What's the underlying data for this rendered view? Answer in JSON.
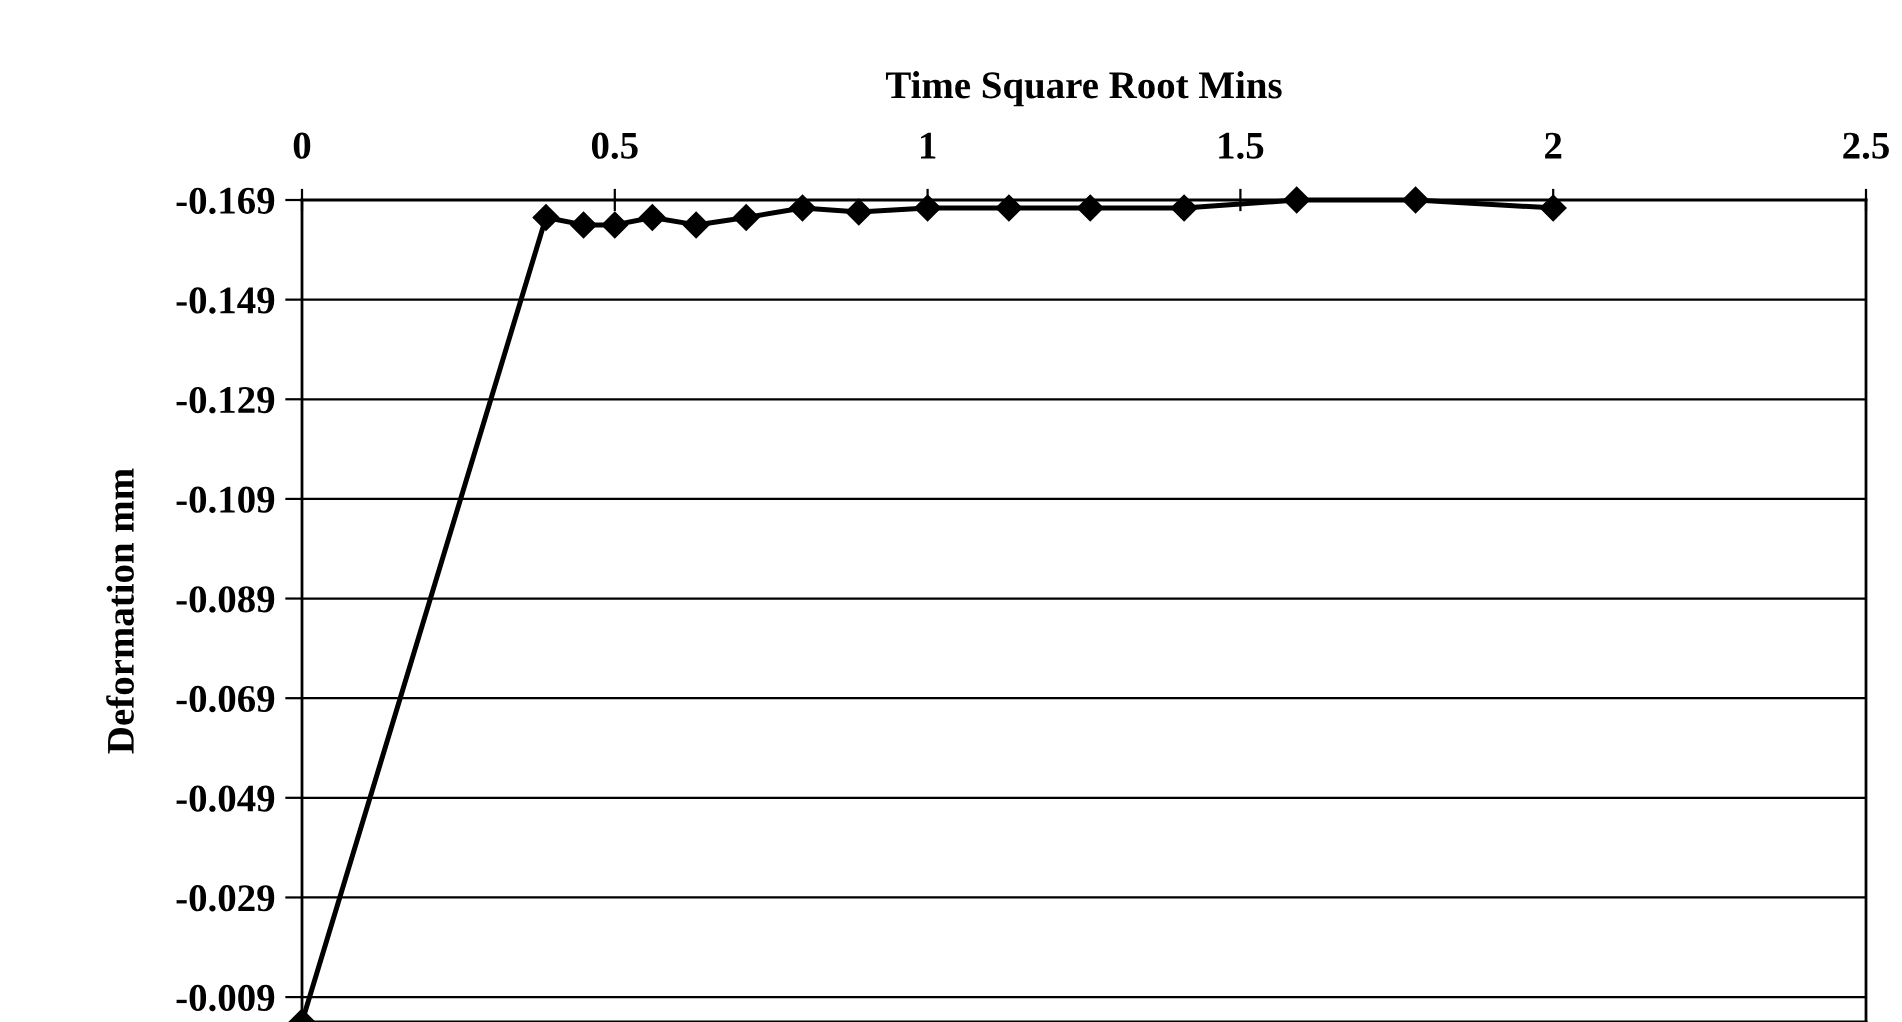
{
  "chart_data": {
    "type": "line",
    "xlabel": "Time Square Root Mins",
    "ylabel": "Deformation mm",
    "x": [
      0,
      0.39,
      0.45,
      0.5,
      0.56,
      0.63,
      0.71,
      0.8,
      0.89,
      1.0,
      1.13,
      1.26,
      1.41,
      1.59,
      1.78,
      2.0
    ],
    "series": [
      {
        "color": "#000000",
        "values": [
          -0.004,
          -0.1655,
          -0.164,
          -0.164,
          -0.1655,
          -0.164,
          -0.1655,
          -0.1674,
          -0.1666,
          -0.1674,
          -0.1674,
          -0.1674,
          -0.1674,
          -0.169,
          -0.169,
          -0.1674
        ]
      }
    ],
    "xlim": [
      0,
      2.5
    ],
    "xticks": [
      0,
      0.5,
      1,
      1.5,
      2,
      2.5
    ],
    "ylim": [
      -0.004,
      -0.169
    ],
    "yticks": [
      -0.169,
      -0.149,
      -0.129,
      -0.109,
      -0.089,
      -0.069,
      -0.049,
      -0.029,
      -0.009
    ],
    "grid": "y",
    "marker": "diamond",
    "line_style": "solid"
  }
}
